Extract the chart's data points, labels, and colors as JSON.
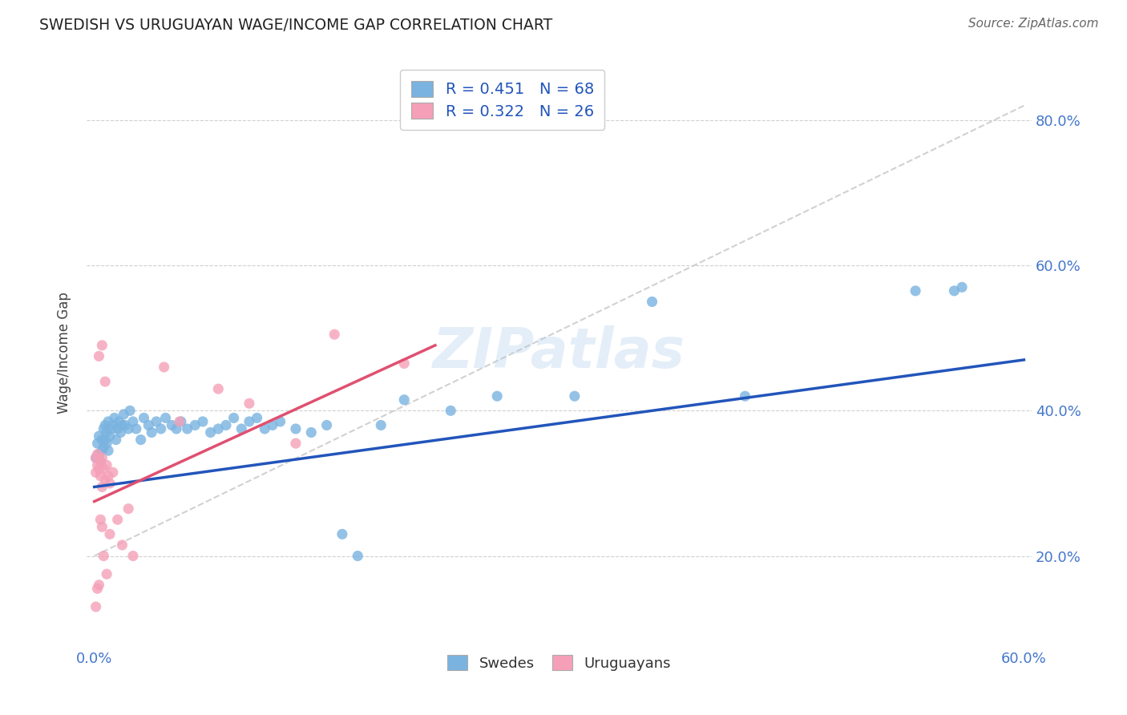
{
  "title": "SWEDISH VS URUGUAYAN WAGE/INCOME GAP CORRELATION CHART",
  "source": "Source: ZipAtlas.com",
  "ylabel": "Wage/Income Gap",
  "xlim": [
    -0.005,
    0.605
  ],
  "ylim": [
    0.08,
    0.88
  ],
  "xtick_positions": [
    0.0,
    0.1,
    0.2,
    0.3,
    0.4,
    0.5,
    0.6
  ],
  "xticklabels": [
    "0.0%",
    "",
    "",
    "",
    "",
    "",
    "60.0%"
  ],
  "ytick_positions": [
    0.2,
    0.4,
    0.6,
    0.8
  ],
  "ytick_labels": [
    "20.0%",
    "40.0%",
    "60.0%",
    "80.0%"
  ],
  "swedish_color": "#7ab3e0",
  "uruguayan_color": "#f5a0b8",
  "swedish_line_color": "#2255bb",
  "uruguayan_line_color": "#e05070",
  "diagonal_color": "#cccccc",
  "R_swedish": 0.451,
  "N_swedish": 68,
  "R_uruguayan": 0.322,
  "N_uruguayan": 26,
  "watermark": "ZIPatlas",
  "background_color": "#ffffff",
  "grid_color": "#d0d0d0",
  "swedish_x": [
    0.001,
    0.002,
    0.003,
    0.003,
    0.004,
    0.005,
    0.005,
    0.006,
    0.006,
    0.007,
    0.007,
    0.008,
    0.008,
    0.009,
    0.009,
    0.01,
    0.011,
    0.012,
    0.013,
    0.014,
    0.015,
    0.016,
    0.017,
    0.018,
    0.019,
    0.02,
    0.022,
    0.023,
    0.025,
    0.027,
    0.03,
    0.032,
    0.035,
    0.037,
    0.04,
    0.043,
    0.046,
    0.05,
    0.053,
    0.056,
    0.06,
    0.065,
    0.07,
    0.075,
    0.08,
    0.085,
    0.09,
    0.095,
    0.1,
    0.105,
    0.11,
    0.115,
    0.12,
    0.13,
    0.14,
    0.15,
    0.16,
    0.17,
    0.185,
    0.2,
    0.23,
    0.26,
    0.31,
    0.36,
    0.42,
    0.53,
    0.555,
    0.56
  ],
  "swedish_y": [
    0.335,
    0.355,
    0.34,
    0.365,
    0.33,
    0.36,
    0.345,
    0.375,
    0.35,
    0.38,
    0.36,
    0.37,
    0.355,
    0.385,
    0.345,
    0.365,
    0.375,
    0.38,
    0.39,
    0.36,
    0.375,
    0.385,
    0.37,
    0.38,
    0.395,
    0.38,
    0.375,
    0.4,
    0.385,
    0.375,
    0.36,
    0.39,
    0.38,
    0.37,
    0.385,
    0.375,
    0.39,
    0.38,
    0.375,
    0.385,
    0.375,
    0.38,
    0.385,
    0.37,
    0.375,
    0.38,
    0.39,
    0.375,
    0.385,
    0.39,
    0.375,
    0.38,
    0.385,
    0.375,
    0.37,
    0.38,
    0.23,
    0.2,
    0.38,
    0.415,
    0.4,
    0.42,
    0.42,
    0.55,
    0.42,
    0.565,
    0.565,
    0.57
  ],
  "uruguayan_x": [
    0.001,
    0.001,
    0.002,
    0.002,
    0.003,
    0.004,
    0.004,
    0.005,
    0.005,
    0.006,
    0.007,
    0.008,
    0.009,
    0.01,
    0.012,
    0.015,
    0.018,
    0.022,
    0.025,
    0.045,
    0.055,
    0.08,
    0.1,
    0.13,
    0.155,
    0.2
  ],
  "uruguayan_y": [
    0.335,
    0.315,
    0.34,
    0.325,
    0.32,
    0.33,
    0.31,
    0.335,
    0.295,
    0.32,
    0.305,
    0.325,
    0.31,
    0.3,
    0.315,
    0.25,
    0.215,
    0.265,
    0.2,
    0.46,
    0.385,
    0.43,
    0.41,
    0.355,
    0.505,
    0.465
  ],
  "uruguayan_extra_low_x": [
    0.001,
    0.002,
    0.003,
    0.004,
    0.005,
    0.006,
    0.008,
    0.01,
    0.003,
    0.005,
    0.007
  ],
  "uruguayan_extra_low_y": [
    0.13,
    0.155,
    0.16,
    0.25,
    0.24,
    0.2,
    0.175,
    0.23,
    0.475,
    0.49,
    0.44
  ]
}
